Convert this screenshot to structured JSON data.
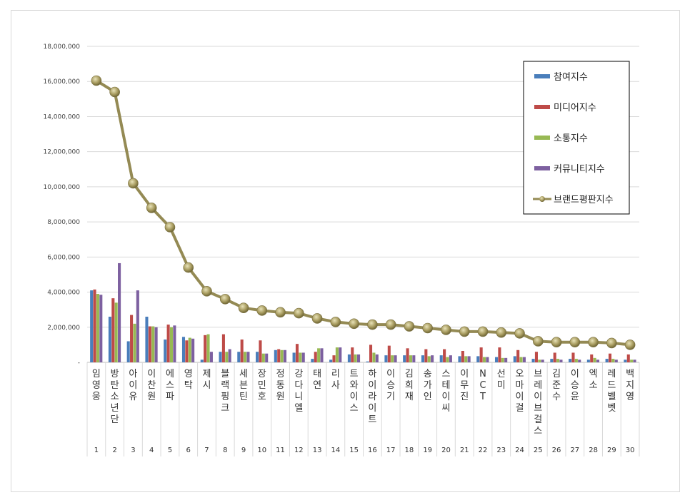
{
  "chart_data": {
    "type": "bar+line",
    "title": "",
    "xlabel": "",
    "ylabel": "",
    "ylim": [
      0,
      18000000
    ],
    "yticks": [
      "-",
      "2,000,000",
      "4,000,000",
      "6,000,000",
      "8,000,000",
      "10,000,000",
      "12,000,000",
      "14,000,000",
      "16,000,000",
      "18,000,000"
    ],
    "grid": true,
    "legend_position": "top-right",
    "categories": [
      "임영웅",
      "방탄소년단",
      "아이유",
      "이찬원",
      "에스파",
      "영탁",
      "제시",
      "블랙핑크",
      "세븐틴",
      "장민호",
      "정동원",
      "강다니엘",
      "태연",
      "리사",
      "트와이스",
      "하이라이트",
      "이승기",
      "김희재",
      "송가인",
      "스테이씨",
      "이무진",
      "NCT",
      "선미",
      "오마이걸",
      "브레이브걸스",
      "김준수",
      "이승윤",
      "엑소",
      "레드벨벳",
      "백지영"
    ],
    "ranks": [
      "1",
      "2",
      "3",
      "4",
      "5",
      "6",
      "7",
      "8",
      "9",
      "10",
      "11",
      "12",
      "13",
      "14",
      "15",
      "16",
      "17",
      "18",
      "19",
      "20",
      "21",
      "22",
      "23",
      "24",
      "25",
      "26",
      "27",
      "28",
      "29",
      "30"
    ],
    "series": [
      {
        "name": "참여지수",
        "type": "bar",
        "color": "#4a7ebb",
        "values": [
          4100000,
          2600000,
          1200000,
          2600000,
          1300000,
          1450000,
          150000,
          600000,
          600000,
          600000,
          700000,
          550000,
          200000,
          150000,
          450000,
          50000,
          400000,
          400000,
          400000,
          400000,
          350000,
          350000,
          300000,
          350000,
          200000,
          200000,
          200000,
          150000,
          200000,
          150000
        ]
      },
      {
        "name": "미디어지수",
        "type": "bar",
        "color": "#be4b48",
        "values": [
          4150000,
          3650000,
          2700000,
          2050000,
          2150000,
          1250000,
          1550000,
          1600000,
          1300000,
          1250000,
          750000,
          1050000,
          600000,
          400000,
          850000,
          1000000,
          950000,
          800000,
          750000,
          750000,
          650000,
          850000,
          850000,
          700000,
          600000,
          550000,
          550000,
          450000,
          500000,
          450000
        ]
      },
      {
        "name": "소통지수",
        "type": "bar",
        "color": "#98b954",
        "values": [
          3900000,
          3400000,
          2200000,
          2050000,
          2000000,
          1400000,
          1600000,
          600000,
          600000,
          500000,
          700000,
          550000,
          800000,
          850000,
          450000,
          550000,
          400000,
          400000,
          350000,
          300000,
          350000,
          300000,
          250000,
          300000,
          150000,
          200000,
          200000,
          250000,
          200000,
          150000
        ]
      },
      {
        "name": "커뮤니티지수",
        "type": "bar",
        "color": "#7d60a0",
        "values": [
          3850000,
          5650000,
          4100000,
          2000000,
          2100000,
          1350000,
          600000,
          750000,
          600000,
          500000,
          700000,
          550000,
          800000,
          850000,
          450000,
          450000,
          400000,
          400000,
          400000,
          400000,
          350000,
          300000,
          250000,
          300000,
          150000,
          150000,
          150000,
          150000,
          150000,
          150000
        ]
      },
      {
        "name": "브랜드평판지수",
        "type": "line",
        "color": "#948a54",
        "values": [
          16050000,
          15400000,
          10200000,
          8800000,
          7700000,
          5400000,
          4050000,
          3600000,
          3100000,
          2950000,
          2850000,
          2800000,
          2500000,
          2300000,
          2200000,
          2150000,
          2150000,
          2050000,
          1950000,
          1850000,
          1750000,
          1750000,
          1700000,
          1650000,
          1200000,
          1150000,
          1150000,
          1150000,
          1100000,
          1000000
        ]
      }
    ]
  }
}
